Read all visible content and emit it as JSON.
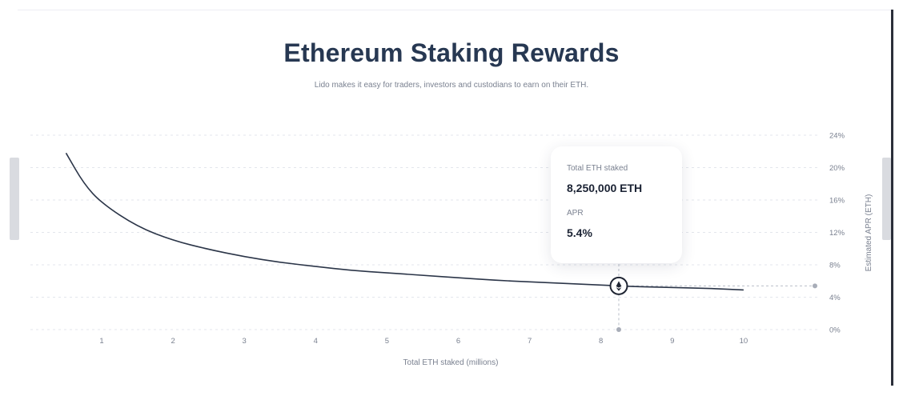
{
  "chart_data": {
    "type": "line",
    "title": "Ethereum Staking Rewards",
    "subtitle": "Lido makes it easy for traders, investors and custodians to earn on their ETH.",
    "xlabel": "Total ETH staked (millions)",
    "ylabel": "Estimated APR (ETH)",
    "xlim": [
      0.5,
      11
    ],
    "ylim": [
      0,
      24
    ],
    "x_ticks": [
      "1",
      "2",
      "3",
      "4",
      "5",
      "6",
      "7",
      "8",
      "9",
      "10"
    ],
    "y_ticks": [
      "0%",
      "4%",
      "8%",
      "12%",
      "16%",
      "20%",
      "24%"
    ],
    "y_tick_values": [
      0,
      4,
      8,
      12,
      16,
      20,
      24
    ],
    "grid": true,
    "y_axis_side": "right",
    "series": [
      {
        "x": [
          0.5,
          0.75,
          1,
          1.5,
          2,
          2.5,
          3,
          3.5,
          4,
          4.5,
          5,
          5.5,
          6,
          6.5,
          7,
          7.5,
          8,
          8.25,
          8.5,
          9,
          9.5,
          10
        ],
        "y": [
          21.8,
          18.0,
          15.6,
          12.7,
          11.0,
          9.9,
          9.0,
          8.3,
          7.8,
          7.3,
          7.0,
          6.7,
          6.4,
          6.1,
          5.9,
          5.7,
          5.5,
          5.4,
          5.3,
          5.2,
          5.1,
          4.9
        ]
      }
    ],
    "highlight": {
      "x": 8.25,
      "y": 5.4
    },
    "line_color": "#2b3548"
  },
  "tooltip": {
    "total_label": "Total ETH staked",
    "total_value": "8,250,000 ETH",
    "apr_label": "APR",
    "apr_value": "5.4%"
  },
  "marker_icon": "ethereum-icon"
}
